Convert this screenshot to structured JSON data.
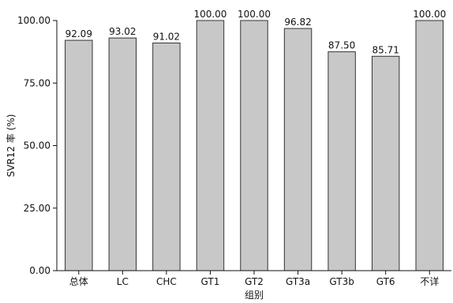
{
  "chart_data": {
    "type": "bar",
    "categories": [
      "总体",
      "LC",
      "CHC",
      "GT1",
      "GT2",
      "GT3a",
      "GT3b",
      "GT6",
      "不详"
    ],
    "values": [
      92.09,
      93.02,
      91.02,
      100.0,
      100.0,
      96.82,
      87.5,
      85.71,
      100.0
    ],
    "value_labels": [
      "92.09",
      "93.02",
      "91.02",
      "100.00",
      "100.00",
      "96.82",
      "87.50",
      "85.71",
      "100.00"
    ],
    "xlabel": "组别",
    "ylabel": "SVR12 率 (%)",
    "ylim": [
      0,
      100
    ],
    "yticks": [
      0,
      25,
      50,
      75,
      100
    ],
    "ytick_labels": [
      "0.00",
      "25.00",
      "50.00",
      "75.00",
      "100.00"
    ],
    "grid": false,
    "bar_color": "#c8c8c8",
    "bar_edge_color": "#333333"
  }
}
